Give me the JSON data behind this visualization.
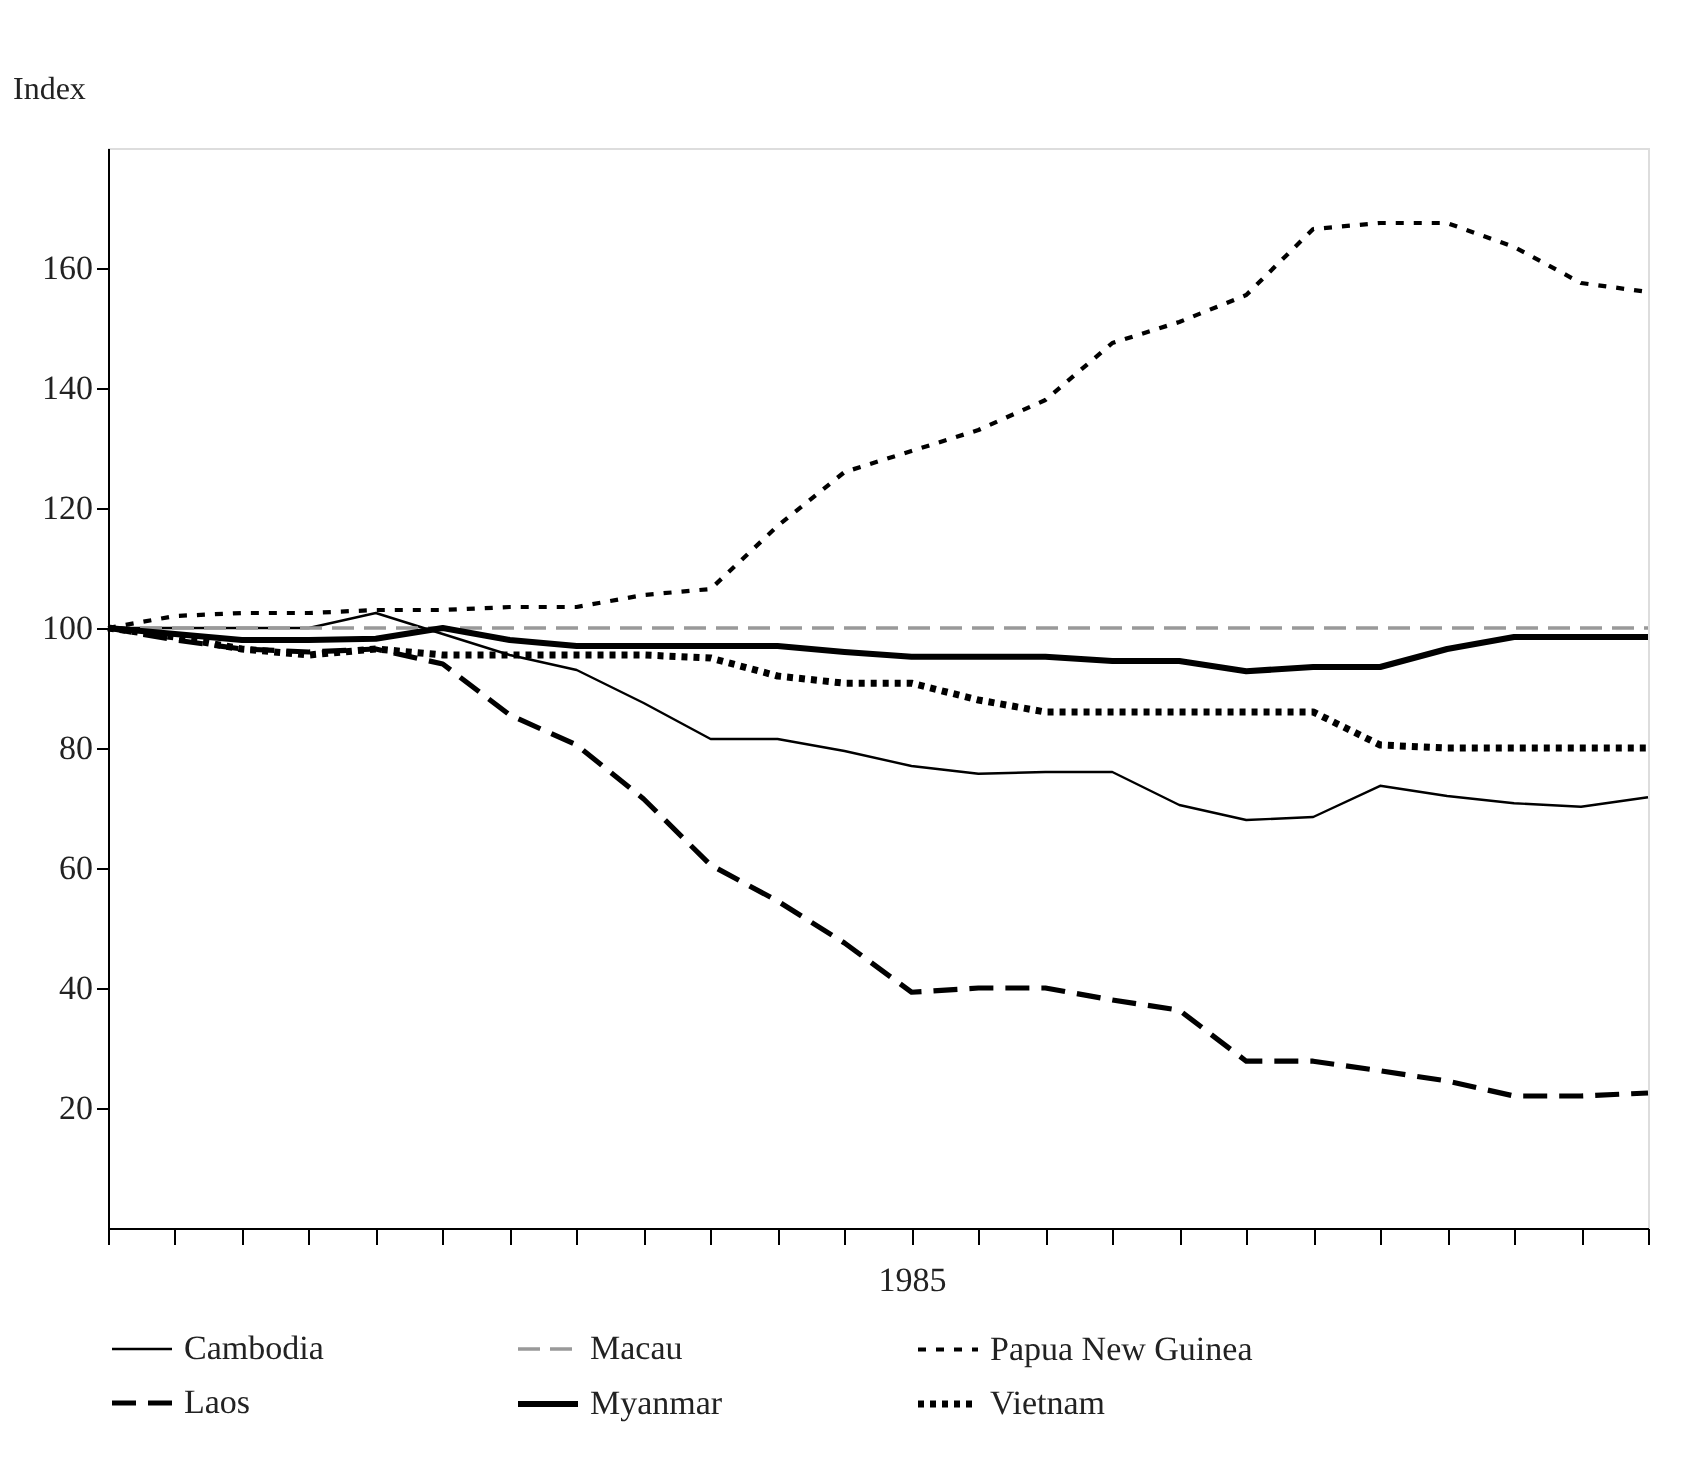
{
  "chart_data": {
    "type": "line",
    "ylabel": "Index",
    "categories": [
      null,
      null,
      null,
      null,
      null,
      null,
      null,
      null,
      null,
      null,
      null,
      null,
      "1985",
      null,
      null,
      null,
      null,
      null,
      null,
      null,
      null,
      null,
      null,
      null
    ],
    "ylim": [
      0,
      180
    ],
    "yticks": [
      20,
      40,
      60,
      80,
      100,
      120,
      140,
      160
    ],
    "grid": false,
    "legend": "bottom",
    "series": [
      {
        "name": "Cambodia",
        "color": "#000000",
        "line_style": "solid",
        "values": [
          100,
          100,
          100,
          100,
          102.5,
          99,
          95.5,
          93,
          87.5,
          81.5,
          81.5,
          79.5,
          77,
          75.7,
          76,
          76,
          70.5,
          68,
          68.5,
          73.7,
          72,
          70.8,
          70.2,
          71.8
        ]
      },
      {
        "name": "Macau",
        "color": "#999999",
        "line_style": "dashed",
        "values": [
          100,
          100,
          100,
          100,
          100,
          100,
          100,
          100,
          100,
          100,
          100,
          100,
          100,
          100,
          100,
          100,
          100,
          100,
          100,
          100,
          100,
          100,
          100,
          100
        ]
      },
      {
        "name": "Papua New Guinea",
        "color": "#000000",
        "line_style": "dotted",
        "values": [
          100,
          102,
          102.5,
          102.5,
          103,
          103,
          103.5,
          103.5,
          105.5,
          106.5,
          117,
          126,
          129.5,
          133,
          138,
          147.5,
          151,
          155.5,
          166.5,
          167.5,
          167.5,
          163.5,
          157.5,
          156
        ]
      },
      {
        "name": "Laos",
        "color": "#000000",
        "line_style": "dashed",
        "values": [
          100,
          98,
          96.5,
          96,
          96.5,
          94,
          85.5,
          80.5,
          71.5,
          60.5,
          54.5,
          47.5,
          39.3,
          40,
          40,
          38,
          36.3,
          27.8,
          27.8,
          26.2,
          24.5,
          22,
          22,
          22.5
        ]
      },
      {
        "name": "Myanmar",
        "color": "#000000",
        "line_style": "solid",
        "values": [
          100,
          99,
          98,
          98,
          98.2,
          100,
          98,
          97,
          97,
          97,
          97,
          96,
          95.2,
          95.2,
          95.2,
          94.5,
          94.5,
          92.8,
          93.5,
          93.5,
          96.5,
          98.5,
          98.5,
          98.5
        ]
      },
      {
        "name": "Vietnam",
        "color": "#000000",
        "line_style": "dotted",
        "values": [
          100,
          98.5,
          96.5,
          95.5,
          96.5,
          95.5,
          95.5,
          95.5,
          95.5,
          95,
          92,
          90.8,
          90.8,
          88,
          86,
          86,
          86,
          86,
          86,
          80.5,
          80,
          80,
          80,
          80
        ]
      }
    ]
  }
}
